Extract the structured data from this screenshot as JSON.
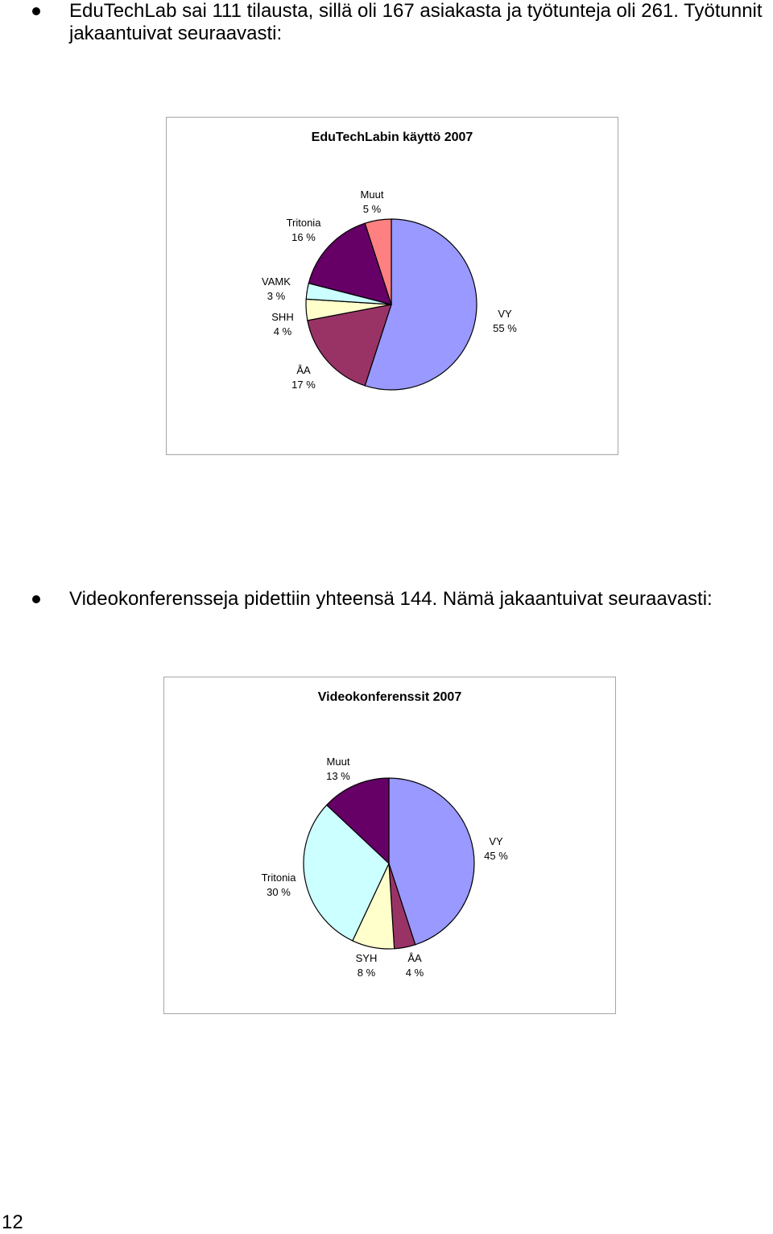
{
  "text": {
    "bullet1": "EduTechLab sai 111 tilausta, sillä oli 167 asiakasta ja työtunteja oli 261. Työtunnit jakaantuivat seuraavasti:",
    "bullet2": "Videokonferensseja pidettiin yhteensä 144. Nämä jakaantuivat seuraavasti:",
    "page_number": "12"
  },
  "chart_data": [
    {
      "type": "pie",
      "title": "EduTechLabin käyttö 2007",
      "slices": [
        {
          "label": "VY",
          "value": 55,
          "display": "55 %",
          "color": "#9999ff"
        },
        {
          "label": "ÅA",
          "value": 17,
          "display": "17 %",
          "color": "#993366"
        },
        {
          "label": "SHH",
          "value": 4,
          "display": "4 %",
          "color": "#ffffcc"
        },
        {
          "label": "VAMK",
          "value": 3,
          "display": "3 %",
          "color": "#ccffff"
        },
        {
          "label": "Tritonia",
          "value": 16,
          "display": "16 %",
          "color": "#660066"
        },
        {
          "label": "Muut",
          "value": 5,
          "display": "5 %",
          "color": "#ff8080"
        }
      ]
    },
    {
      "type": "pie",
      "title": "Videokonferenssit 2007",
      "slices": [
        {
          "label": "VY",
          "value": 45,
          "display": "45 %",
          "color": "#9999ff"
        },
        {
          "label": "ÅA",
          "value": 4,
          "display": "4 %",
          "color": "#993366"
        },
        {
          "label": "SYH",
          "value": 8,
          "display": "8 %",
          "color": "#ffffcc"
        },
        {
          "label": "Tritonia",
          "value": 30,
          "display": "30 %",
          "color": "#ccffff"
        },
        {
          "label": "Muut",
          "value": 13,
          "display": "13 %",
          "color": "#660066"
        }
      ]
    }
  ]
}
